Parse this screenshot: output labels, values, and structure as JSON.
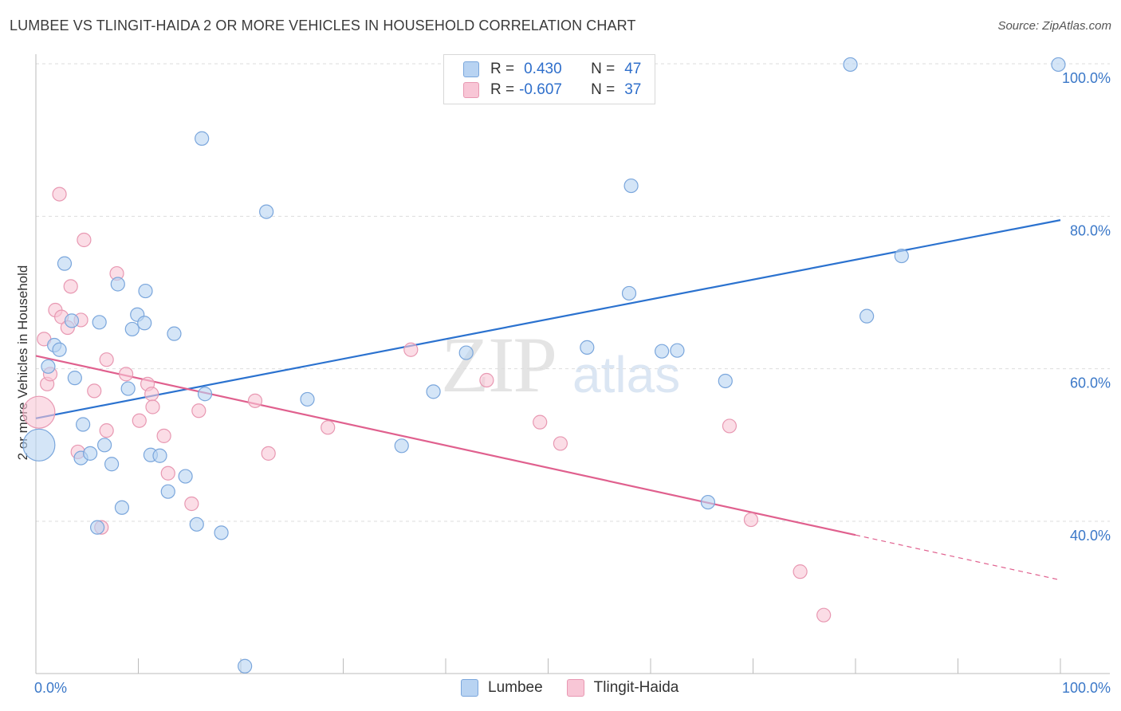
{
  "header": {
    "title": "LUMBEE VS TLINGIT-HAIDA 2 OR MORE VEHICLES IN HOUSEHOLD CORRELATION CHART",
    "source": "Source: ZipAtlas.com"
  },
  "watermark": {
    "zip": "ZIP",
    "atlas": "atlas"
  },
  "legend": {
    "rows": [
      {
        "r_label": "R =",
        "r_value": "0.430",
        "n_label": "N =",
        "n_value": "47"
      },
      {
        "r_label": "R =",
        "r_value": "-0.607",
        "n_label": "N =",
        "n_value": "37"
      }
    ]
  },
  "bottom_legend": {
    "series1": "Lumbee",
    "series2": "Tlingit-Haida"
  },
  "colors": {
    "lumbee_fill": "#b8d3f2",
    "lumbee_stroke": "#7aa6dc",
    "lumbee_line": "#2b72cf",
    "tlingit_fill": "#f8c6d6",
    "tlingit_stroke": "#e898b2",
    "tlingit_line": "#e0608e",
    "tick_text": "#3b78c8",
    "grid": "#dddddd"
  },
  "chart_data": {
    "type": "scatter",
    "title": "LUMBEE VS TLINGIT-HAIDA 2 OR MORE VEHICLES IN HOUSEHOLD CORRELATION CHART",
    "xlabel": "",
    "ylabel": "2 or more Vehicles in Household",
    "xlim": [
      0,
      100
    ],
    "ylim": [
      20,
      102
    ],
    "x_tick_labels": [
      "0.0%",
      "100.0%"
    ],
    "y_ticks": [
      40,
      60,
      80,
      100
    ],
    "y_tick_labels": [
      "40.0%",
      "60.0%",
      "80.0%",
      "100.0%"
    ],
    "series": [
      {
        "name": "Lumbee",
        "r": 0.43,
        "n": 47,
        "trend": {
          "x": [
            0,
            100
          ],
          "y": [
            53.5,
            79.5
          ]
        },
        "points": [
          {
            "x": 0.3,
            "y": 50.0,
            "big": true
          },
          {
            "x": 1.2,
            "y": 60.3
          },
          {
            "x": 1.8,
            "y": 63.1
          },
          {
            "x": 2.3,
            "y": 62.5
          },
          {
            "x": 2.8,
            "y": 73.8
          },
          {
            "x": 3.5,
            "y": 66.3
          },
          {
            "x": 3.8,
            "y": 58.8
          },
          {
            "x": 4.6,
            "y": 52.7
          },
          {
            "x": 4.4,
            "y": 48.3
          },
          {
            "x": 5.3,
            "y": 48.9
          },
          {
            "x": 6.2,
            "y": 66.1
          },
          {
            "x": 6.7,
            "y": 50.0
          },
          {
            "x": 7.4,
            "y": 47.5
          },
          {
            "x": 6.0,
            "y": 39.2
          },
          {
            "x": 8.4,
            "y": 41.8
          },
          {
            "x": 8.0,
            "y": 71.1
          },
          {
            "x": 9.0,
            "y": 57.4
          },
          {
            "x": 9.4,
            "y": 65.2
          },
          {
            "x": 9.9,
            "y": 67.1
          },
          {
            "x": 10.6,
            "y": 66.0
          },
          {
            "x": 10.7,
            "y": 70.2
          },
          {
            "x": 11.2,
            "y": 48.7
          },
          {
            "x": 12.1,
            "y": 48.6
          },
          {
            "x": 12.9,
            "y": 43.9
          },
          {
            "x": 13.5,
            "y": 64.6
          },
          {
            "x": 14.6,
            "y": 45.9
          },
          {
            "x": 15.7,
            "y": 39.6
          },
          {
            "x": 16.2,
            "y": 90.2
          },
          {
            "x": 16.5,
            "y": 56.7
          },
          {
            "x": 18.1,
            "y": 38.5
          },
          {
            "x": 20.4,
            "y": 21.0
          },
          {
            "x": 22.5,
            "y": 80.6
          },
          {
            "x": 26.5,
            "y": 56.0
          },
          {
            "x": 35.7,
            "y": 49.9
          },
          {
            "x": 38.8,
            "y": 57.0
          },
          {
            "x": 42.0,
            "y": 62.1
          },
          {
            "x": 58.1,
            "y": 84.0
          },
          {
            "x": 53.8,
            "y": 62.8
          },
          {
            "x": 57.9,
            "y": 69.9
          },
          {
            "x": 61.1,
            "y": 62.3
          },
          {
            "x": 62.6,
            "y": 62.4
          },
          {
            "x": 65.6,
            "y": 42.5
          },
          {
            "x": 67.3,
            "y": 58.4
          },
          {
            "x": 81.1,
            "y": 66.9
          },
          {
            "x": 79.5,
            "y": 99.9
          },
          {
            "x": 84.5,
            "y": 74.8
          },
          {
            "x": 99.8,
            "y": 99.9
          }
        ]
      },
      {
        "name": "Tlingit-Haida",
        "r": -0.607,
        "n": 37,
        "trend": {
          "x": [
            0,
            80
          ],
          "y": [
            61.7,
            38.2
          ]
        },
        "trend_dashed": {
          "x": [
            80,
            100
          ],
          "y": [
            38.2,
            32.3
          ]
        },
        "points": [
          {
            "x": 0.3,
            "y": 54.3,
            "big": true
          },
          {
            "x": 0.8,
            "y": 63.9
          },
          {
            "x": 1.1,
            "y": 58.0
          },
          {
            "x": 1.4,
            "y": 59.3
          },
          {
            "x": 1.9,
            "y": 67.7
          },
          {
            "x": 2.3,
            "y": 82.9
          },
          {
            "x": 2.5,
            "y": 66.8
          },
          {
            "x": 3.1,
            "y": 65.4
          },
          {
            "x": 3.4,
            "y": 70.8
          },
          {
            "x": 4.1,
            "y": 49.1
          },
          {
            "x": 4.4,
            "y": 66.4
          },
          {
            "x": 4.7,
            "y": 76.9
          },
          {
            "x": 5.7,
            "y": 57.1
          },
          {
            "x": 6.4,
            "y": 39.2
          },
          {
            "x": 6.9,
            "y": 61.2
          },
          {
            "x": 6.9,
            "y": 51.9
          },
          {
            "x": 7.9,
            "y": 72.5
          },
          {
            "x": 8.8,
            "y": 59.3
          },
          {
            "x": 10.1,
            "y": 53.2
          },
          {
            "x": 10.9,
            "y": 58.0
          },
          {
            "x": 11.3,
            "y": 56.7
          },
          {
            "x": 11.4,
            "y": 55.0
          },
          {
            "x": 12.5,
            "y": 51.2
          },
          {
            "x": 12.9,
            "y": 46.3
          },
          {
            "x": 15.2,
            "y": 42.3
          },
          {
            "x": 15.9,
            "y": 54.5
          },
          {
            "x": 21.4,
            "y": 55.8
          },
          {
            "x": 22.7,
            "y": 48.9
          },
          {
            "x": 28.5,
            "y": 52.3
          },
          {
            "x": 36.6,
            "y": 62.5
          },
          {
            "x": 44.0,
            "y": 58.5
          },
          {
            "x": 49.2,
            "y": 53.0
          },
          {
            "x": 51.2,
            "y": 50.2
          },
          {
            "x": 67.7,
            "y": 52.5
          },
          {
            "x": 69.8,
            "y": 40.2
          },
          {
            "x": 74.6,
            "y": 33.4
          },
          {
            "x": 76.9,
            "y": 27.7
          }
        ]
      }
    ]
  }
}
